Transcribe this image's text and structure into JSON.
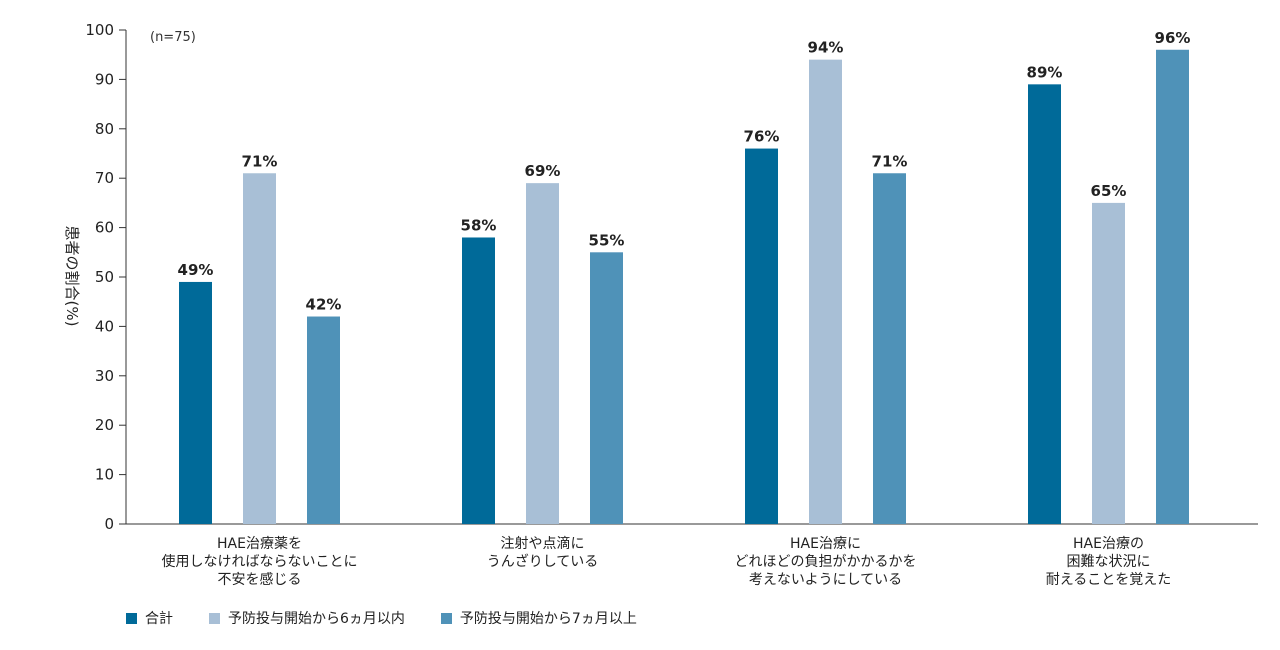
{
  "chart_data": {
    "type": "bar",
    "note": "(n=75)",
    "ylabel": "患者の割合(%)",
    "ylim": [
      0,
      100
    ],
    "yticks": [
      0,
      10,
      20,
      30,
      40,
      50,
      60,
      70,
      80,
      90,
      100
    ],
    "categories": [
      [
        "HAE治療薬を",
        "使用しなければならないことに",
        "不安を感じる"
      ],
      [
        "注射や点滴に",
        "うんざりしている"
      ],
      [
        "HAE治療に",
        "どれほどの負担がかかるかを",
        "考えないようにしている"
      ],
      [
        "HAE治療の",
        "困難な状況に",
        "耐えることを覚えた"
      ]
    ],
    "series": [
      {
        "name": "合計",
        "color": "#006a99",
        "values": [
          49,
          58,
          76,
          89
        ]
      },
      {
        "name": "予防投与開始から6ヵ月以内",
        "color": "#a8bfd6",
        "values": [
          71,
          69,
          94,
          65
        ]
      },
      {
        "name": "予防投与開始から7ヵ月以上",
        "color": "#4f92b8",
        "values": [
          42,
          55,
          71,
          96
        ]
      }
    ],
    "legend_position": "bottom-left",
    "grid": false
  }
}
